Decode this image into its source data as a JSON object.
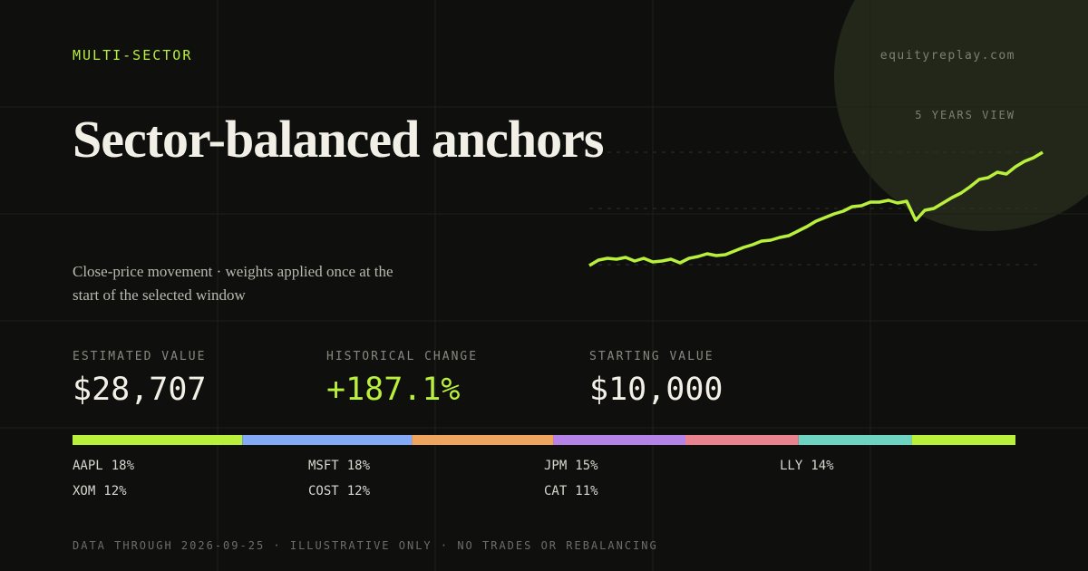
{
  "eyebrow": "MULTI-SECTOR",
  "site": "equityreplay.com",
  "view": "5 YEARS VIEW",
  "title": "Sector-balanced anchors",
  "subtitle": "Close-price movement · weights applied once at the start of the selected window",
  "stats": [
    {
      "label": "ESTIMATED VALUE",
      "value": "$28,707"
    },
    {
      "label": "HISTORICAL CHANGE",
      "value": "+187.1%"
    },
    {
      "label": "STARTING VALUE",
      "value": "$10,000"
    }
  ],
  "sparkline": {
    "color": "#b8f03c",
    "values": [
      10000,
      10898,
      11197,
      11048,
      11347,
      10748,
      11197,
      10599,
      10748,
      11048,
      10449,
      11197,
      11496,
      11946,
      11646,
      11796,
      12395,
      12993,
      13442,
      14041,
      14190,
      14639,
      14938,
      15687,
      16435,
      17333,
      17931,
      18530,
      18979,
      19728,
      19877,
      20476,
      20476,
      20776,
      20327,
      20626,
      17483,
      19130,
      19429,
      20327,
      21225,
      21973,
      23020,
      24218,
      24517,
      25415,
      25116,
      26313,
      27211,
      27810,
      28707
    ]
  },
  "holdings": [
    {
      "ticker": "AAPL",
      "weight": 18,
      "weight_label": "18%",
      "color": "#b8f03c"
    },
    {
      "ticker": "MSFT",
      "weight": 18,
      "weight_label": "18%",
      "color": "#84a9f5"
    },
    {
      "ticker": "JPM",
      "weight": 15,
      "weight_label": "15%",
      "color": "#f0a55e"
    },
    {
      "ticker": "LLY",
      "weight": 14,
      "weight_label": "14%",
      "color": "#b582e8"
    },
    {
      "ticker": "XOM",
      "weight": 12,
      "weight_label": "12%",
      "color": "#e9838f"
    },
    {
      "ticker": "COST",
      "weight": 12,
      "weight_label": "12%",
      "color": "#6fd3c1"
    },
    {
      "ticker": "CAT",
      "weight": 11,
      "weight_label": "11%",
      "color": "#b8f03c"
    }
  ],
  "footer": "DATA THROUGH 2026-09-25 · ILLUSTRATIVE ONLY · NO TRADES OR REBALANCING"
}
